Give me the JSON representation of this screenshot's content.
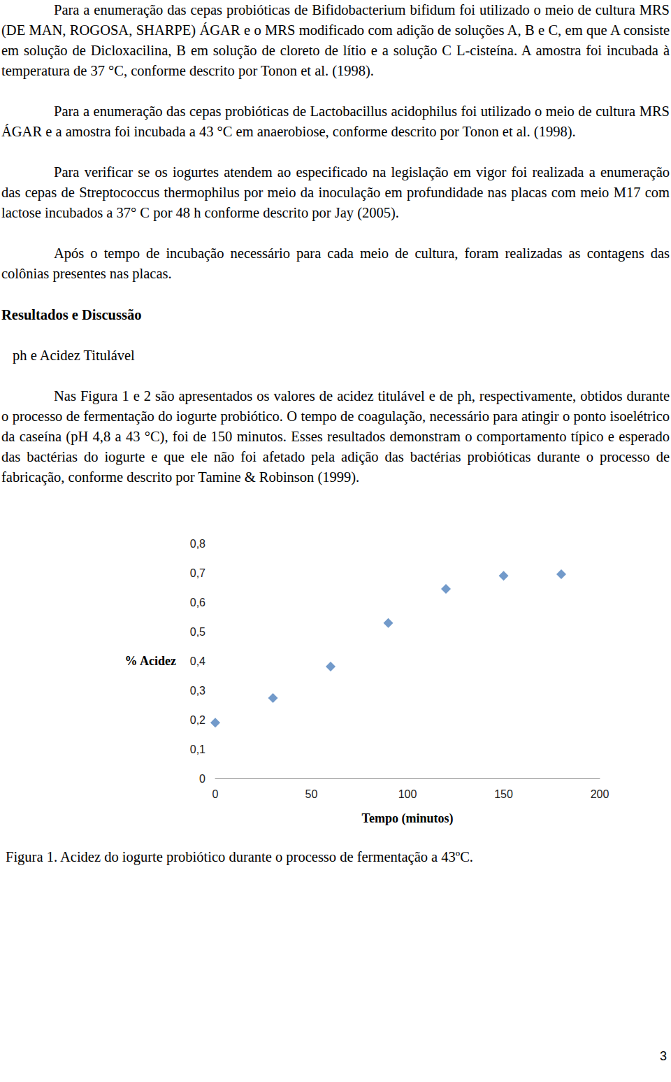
{
  "document": {
    "paragraphs_before": [
      "Para a enumeração das cepas probióticas de Bifidobacterium bifidum foi utilizado o meio de cultura MRS (DE MAN, ROGOSA, SHARPE) ÁGAR e o MRS modificado com adição de soluções A, B e C, em que A consiste em solução de Dicloxacilina, B em solução de cloreto de lítio e a solução C L-cisteína. A amostra foi incubada à temperatura de 37 °C, conforme descrito por Tonon et al. (1998).",
      "Para a enumeração das cepas probióticas de Lactobacillus acidophilus foi utilizado o meio de cultura MRS ÁGAR e a amostra foi incubada a 43 °C em anaerobiose, conforme descrito por Tonon et al. (1998).",
      "Para verificar se os iogurtes atendem ao especificado na legislação em vigor foi realizada a enumeração das cepas de Streptococcus thermophilus por meio da inoculação em profundidade nas placas com meio M17 com lactose incubados a 37° C por 48 h conforme descrito por Jay (2005).",
      "Após o tempo de incubação necessário para cada meio de cultura, foram realizadas as contagens das colônias presentes nas placas."
    ],
    "section_title": "Resultados e Discussão",
    "subsection_title": "ph e Acidez Titulável",
    "paragraph_after": "Nas Figura 1 e 2 são apresentados os valores de acidez titulável e de ph, respectivamente, obtidos durante o processo de fermentação do iogurte probiótico. O tempo de coagulação, necessário para atingir o ponto isoelétrico da caseína (pH 4,8 a 43 °C), foi de 150 minutos. Esses resultados demonstram o comportamento típico e esperado das bactérias do iogurte e que ele não foi afetado pela adição das bactérias probióticas durante o processo de fabricação, conforme descrito por Tamine & Robinson (1999).",
    "figure_caption": "Figura 1. Acidez do iogurte probiótico durante o processo de fermentação a 43ºC.",
    "page_number": "3"
  },
  "chart_data": {
    "type": "scatter",
    "xlabel": "Tempo (minutos)",
    "ylabel": "% Acidez",
    "x": [
      0,
      30,
      60,
      90,
      120,
      150,
      180
    ],
    "values": [
      0.19,
      0.274,
      0.381,
      0.529,
      0.645,
      0.69,
      0.695
    ],
    "color": "#4f81bd",
    "marker": "diamond",
    "xlim": [
      0,
      200
    ],
    "xticks": [
      0,
      50,
      100,
      150,
      200
    ],
    "ylim": [
      0,
      0.8
    ],
    "yticks": [
      0,
      {
        "value": 0.1,
        "label": "0,1"
      },
      {
        "value": 0.2,
        "label": "0,2"
      },
      {
        "value": 0.3,
        "label": "0,3"
      },
      {
        "value": 0.4,
        "label": "0,4"
      },
      {
        "value": 0.5,
        "label": "0,5"
      },
      {
        "value": 0.6,
        "label": "0,6"
      },
      {
        "value": 0.7,
        "label": "0,7"
      },
      {
        "value": 0.8,
        "label": "0,8"
      }
    ],
    "grid": false
  }
}
